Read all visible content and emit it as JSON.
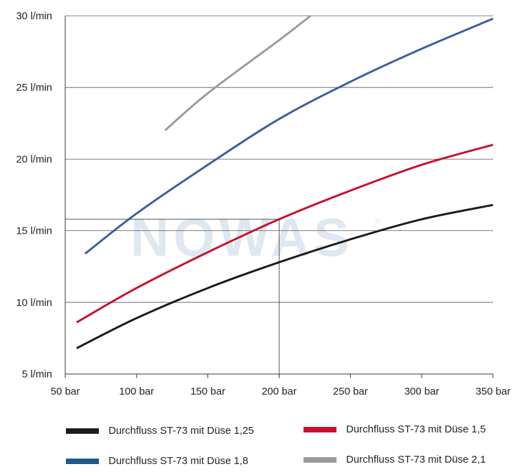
{
  "chart_data": {
    "type": "line",
    "title": "",
    "xlabel": "",
    "ylabel": "",
    "x_ticks": [
      "50 bar",
      "100 bar",
      "150 bar",
      "200 bar",
      "250 bar",
      "300 bar",
      "350 bar"
    ],
    "y_ticks": [
      "5 l/min",
      "10 l/min",
      "15 l/min",
      "20 l/min",
      "25 l/min",
      "30 l/min"
    ],
    "xlim": [
      50,
      350
    ],
    "ylim": [
      5,
      30
    ],
    "grid": "horizontal",
    "legend_position": "bottom",
    "reference_point": {
      "x": 200,
      "y": 15.8
    },
    "watermark": "NOWAS",
    "watermark_mark": "®",
    "series": [
      {
        "name": "Durchfluss ST-73 mit Düse 1,25",
        "color": "#1a1a1a",
        "x": [
          58,
          100,
          150,
          200,
          250,
          300,
          350
        ],
        "y": [
          6.8,
          8.9,
          11.0,
          12.8,
          14.4,
          15.8,
          16.8
        ]
      },
      {
        "name": "Durchfluss ST-73 mit Düse 1,5",
        "color": "#c8102e",
        "x": [
          58,
          100,
          150,
          200,
          250,
          300,
          350
        ],
        "y": [
          8.6,
          11.0,
          13.5,
          15.8,
          17.8,
          19.6,
          21.0
        ]
      },
      {
        "name": "Durchfluss ST-73 mit Düse 1,8",
        "color": "#3a5fa0",
        "x": [
          64,
          100,
          150,
          200,
          250,
          300,
          350
        ],
        "y": [
          13.4,
          16.2,
          19.6,
          22.8,
          25.4,
          27.7,
          29.8
        ]
      },
      {
        "name": "Durchfluss ST-73 mit Düse 2,1",
        "color": "#9a9a9a",
        "x": [
          120,
          150,
          200,
          222
        ],
        "y": [
          22.0,
          24.6,
          28.3,
          30.0
        ]
      }
    ],
    "legend_swatch_colors": [
      "#1a1a1a",
      "#c8102e",
      "#1b5a8c",
      "#9a9a9a"
    ]
  }
}
